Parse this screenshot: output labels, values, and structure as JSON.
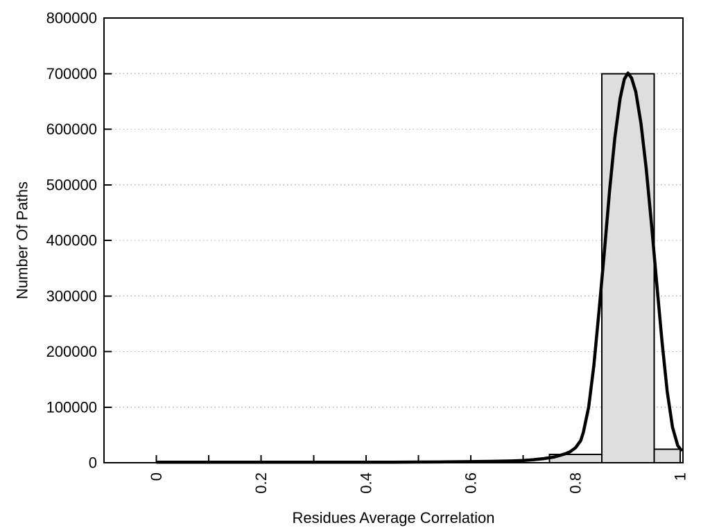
{
  "figure": {
    "background": "#ffffff"
  },
  "chart_data": {
    "type": "bar",
    "subtype": "histogram-with-fit-curve",
    "title": "",
    "xlabel": "Residues Average Correlation",
    "ylabel": "Number Of Paths",
    "xlim": [
      -0.1,
      1.005
    ],
    "ylim": [
      0,
      800000
    ],
    "grid": "horizontal-dotted",
    "legend": "none",
    "x_ticks": [
      {
        "v": 0.0,
        "label": "0"
      },
      {
        "v": 0.1,
        "label": ""
      },
      {
        "v": 0.2,
        "label": "0.2"
      },
      {
        "v": 0.3,
        "label": ""
      },
      {
        "v": 0.4,
        "label": "0.4"
      },
      {
        "v": 0.5,
        "label": ""
      },
      {
        "v": 0.6,
        "label": "0.6"
      },
      {
        "v": 0.7,
        "label": ""
      },
      {
        "v": 0.8,
        "label": "0.8"
      },
      {
        "v": 0.9,
        "label": ""
      },
      {
        "v": 1.0,
        "label": "1"
      }
    ],
    "y_ticks": [
      {
        "v": 0,
        "label": "0"
      },
      {
        "v": 100000,
        "label": "100000"
      },
      {
        "v": 200000,
        "label": "200000"
      },
      {
        "v": 300000,
        "label": "300000"
      },
      {
        "v": 400000,
        "label": "400000"
      },
      {
        "v": 500000,
        "label": "500000"
      },
      {
        "v": 600000,
        "label": "600000"
      },
      {
        "v": 700000,
        "label": "700000"
      },
      {
        "v": 800000,
        "label": "800000"
      }
    ],
    "bars": [
      {
        "from": 0.75,
        "to": 0.85,
        "value": 15000
      },
      {
        "from": 0.85,
        "to": 0.95,
        "value": 700000
      },
      {
        "from": 0.95,
        "to": 1.0,
        "value": 24000
      }
    ],
    "curve": {
      "name": "density-fit",
      "points": [
        [
          0.0,
          1000
        ],
        [
          0.05,
          1000
        ],
        [
          0.1,
          1000
        ],
        [
          0.15,
          1000
        ],
        [
          0.2,
          1000
        ],
        [
          0.25,
          1000
        ],
        [
          0.3,
          1000
        ],
        [
          0.35,
          1000
        ],
        [
          0.4,
          1000
        ],
        [
          0.45,
          1000
        ],
        [
          0.5,
          1200
        ],
        [
          0.55,
          1500
        ],
        [
          0.6,
          2000
        ],
        [
          0.64,
          2500
        ],
        [
          0.68,
          3200
        ],
        [
          0.7,
          4000
        ],
        [
          0.72,
          5500
        ],
        [
          0.74,
          7500
        ],
        [
          0.76,
          10500
        ],
        [
          0.78,
          16000
        ],
        [
          0.79,
          20000
        ],
        [
          0.8,
          27000
        ],
        [
          0.81,
          40000
        ],
        [
          0.815,
          55000
        ],
        [
          0.825,
          100000
        ],
        [
          0.835,
          175000
        ],
        [
          0.845,
          275000
        ],
        [
          0.855,
          380000
        ],
        [
          0.865,
          490000
        ],
        [
          0.875,
          585000
        ],
        [
          0.885,
          655000
        ],
        [
          0.893,
          690000
        ],
        [
          0.9,
          701000
        ],
        [
          0.907,
          692000
        ],
        [
          0.915,
          667000
        ],
        [
          0.925,
          610000
        ],
        [
          0.935,
          528000
        ],
        [
          0.945,
          428000
        ],
        [
          0.955,
          322000
        ],
        [
          0.965,
          218000
        ],
        [
          0.975,
          128000
        ],
        [
          0.985,
          64000
        ],
        [
          0.995,
          31000
        ],
        [
          1.003,
          21000
        ]
      ]
    },
    "colors": {
      "bar_fill": "#dedede",
      "bar_stroke": "#000000",
      "curve": "#000000",
      "grid": "#b0b0b0",
      "axis": "#000000",
      "text": "#000000"
    }
  }
}
